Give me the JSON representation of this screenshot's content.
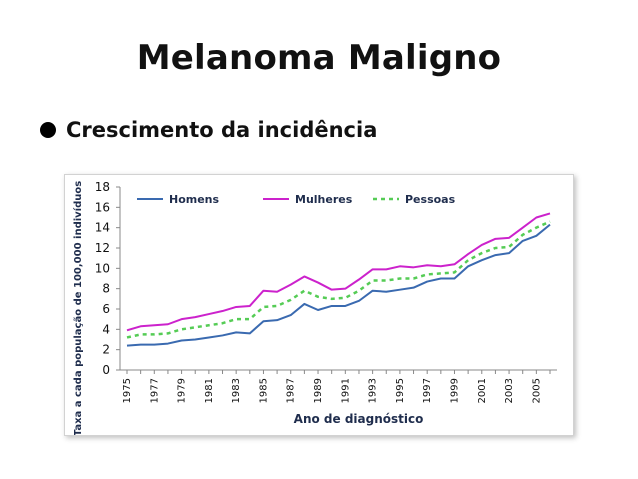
{
  "slide": {
    "title": "Melanoma Maligno",
    "bullet": "Crescimento da incidência"
  },
  "chart_data": {
    "type": "line",
    "xlabel": "Ano de diagnóstico",
    "ylabel": "Taxa a cada população de 100,000 indivíduos",
    "ylim": [
      0,
      18
    ],
    "yticks": [
      0,
      2,
      4,
      6,
      8,
      10,
      12,
      14,
      16,
      18
    ],
    "grid": false,
    "legend": "top",
    "x": [
      1975,
      1976,
      1977,
      1978,
      1979,
      1980,
      1981,
      1982,
      1983,
      1984,
      1985,
      1986,
      1987,
      1988,
      1989,
      1990,
      1991,
      1992,
      1993,
      1994,
      1995,
      1996,
      1997,
      1998,
      1999,
      2000,
      2001,
      2002,
      2003,
      2004,
      2005,
      2006
    ],
    "xtick_labels": [
      "1975",
      "1977",
      "1979",
      "1981",
      "1983",
      "1985",
      "1987",
      "1989",
      "1991",
      "1993",
      "1995",
      "1997",
      "1999",
      "2001",
      "2003",
      "2005"
    ],
    "series": [
      {
        "name": "Homens",
        "color": "#3a6ab0",
        "style": "solid",
        "values": [
          2.4,
          2.5,
          2.5,
          2.6,
          2.9,
          3.0,
          3.2,
          3.4,
          3.7,
          3.6,
          4.8,
          4.9,
          5.4,
          6.5,
          5.9,
          6.3,
          6.3,
          6.8,
          7.8,
          7.7,
          7.9,
          8.1,
          8.7,
          9.0,
          9.0,
          10.2,
          10.8,
          11.3,
          11.5,
          12.7,
          13.2,
          14.3
        ]
      },
      {
        "name": "Mulheres",
        "color": "#cc22cc",
        "style": "solid",
        "values": [
          3.9,
          4.3,
          4.4,
          4.5,
          5.0,
          5.2,
          5.5,
          5.8,
          6.2,
          6.3,
          7.8,
          7.7,
          8.4,
          9.2,
          8.6,
          7.9,
          8.0,
          8.9,
          9.9,
          9.9,
          10.2,
          10.1,
          10.3,
          10.2,
          10.4,
          11.4,
          12.3,
          12.9,
          13.0,
          14.0,
          15.0,
          15.4
        ]
      },
      {
        "name": "Pessoas",
        "color": "#55cc55",
        "style": "dashed",
        "values": [
          3.2,
          3.5,
          3.5,
          3.6,
          4.0,
          4.2,
          4.4,
          4.6,
          5.0,
          5.0,
          6.2,
          6.3,
          6.9,
          7.8,
          7.2,
          7.0,
          7.1,
          7.8,
          8.8,
          8.8,
          9.0,
          9.0,
          9.4,
          9.5,
          9.6,
          10.8,
          11.5,
          12.0,
          12.1,
          13.3,
          14.0,
          14.6
        ]
      }
    ]
  }
}
